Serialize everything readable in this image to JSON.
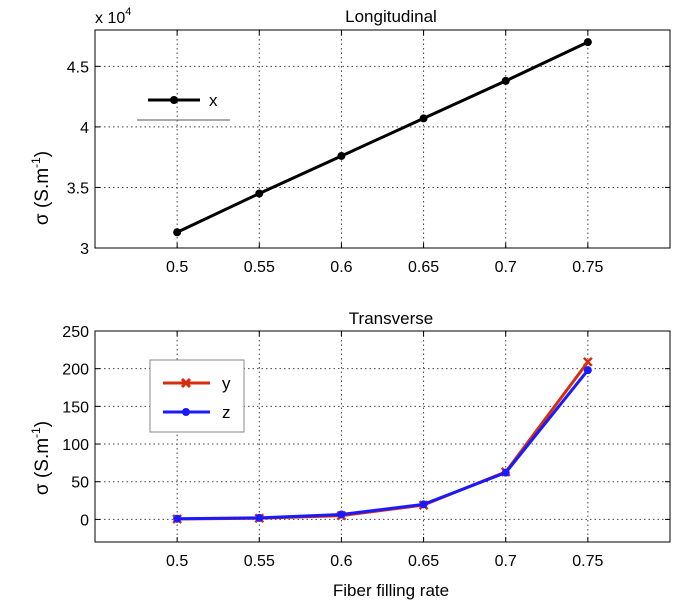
{
  "chart_data": [
    {
      "type": "line",
      "title": "Longitudinal",
      "xlabel": "",
      "ylabel": "σ (S.m",
      "ylabel_sup": "-1",
      "ylabel_close": ")",
      "y_multiplier": "x 10",
      "y_multiplier_exp": "4",
      "x": [
        0.5,
        0.55,
        0.6,
        0.65,
        0.7,
        0.75
      ],
      "xlim": [
        0.45,
        0.8
      ],
      "ylim": [
        3.0,
        4.8
      ],
      "x_ticks": [
        "0.5",
        "0.55",
        "0.6",
        "0.65",
        "0.7",
        "0.75"
      ],
      "y_ticks": [
        "3",
        "3.5",
        "4",
        "4.5"
      ],
      "y_tick_values": [
        3.0,
        3.5,
        4.0,
        4.5
      ],
      "grid": "dotted",
      "legend_position": "top-left",
      "series": [
        {
          "name": "x",
          "color": "#000000",
          "marker": "dot",
          "values": [
            3.13,
            3.45,
            3.76,
            4.07,
            4.38,
            4.7
          ]
        }
      ]
    },
    {
      "type": "line",
      "title": "Transverse",
      "xlabel": "Fiber filling rate",
      "ylabel": "σ (S.m",
      "ylabel_sup": "-1",
      "ylabel_close": ")",
      "x": [
        0.5,
        0.55,
        0.6,
        0.65,
        0.7,
        0.75
      ],
      "xlim": [
        0.45,
        0.8
      ],
      "ylim": [
        -30,
        250
      ],
      "x_ticks": [
        "0.5",
        "0.55",
        "0.6",
        "0.65",
        "0.7",
        "0.75"
      ],
      "y_ticks": [
        "0",
        "50",
        "100",
        "150",
        "200",
        "250"
      ],
      "y_tick_values": [
        0,
        50,
        100,
        150,
        200,
        250
      ],
      "grid": "dotted",
      "legend_position": "top-left",
      "series": [
        {
          "name": "y",
          "color": "#d62d12",
          "marker": "x",
          "values": [
            0.5,
            1.5,
            5,
            19,
            63,
            209
          ]
        },
        {
          "name": "z",
          "color": "#1a1aff",
          "marker": "dot",
          "values": [
            0.8,
            2,
            6.5,
            20,
            62,
            198
          ]
        }
      ]
    }
  ]
}
